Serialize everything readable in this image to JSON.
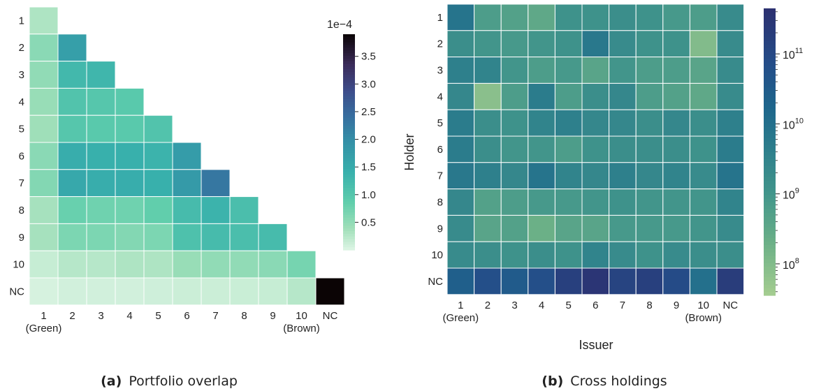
{
  "chart_data": [
    {
      "type": "heatmap",
      "panel": "a",
      "caption_label": "(a)",
      "caption_text": "Portfolio overlap",
      "row_labels": [
        "1",
        "2",
        "3",
        "4",
        "5",
        "6",
        "7",
        "8",
        "9",
        "10",
        "NC"
      ],
      "col_labels": [
        "1",
        "2",
        "3",
        "4",
        "5",
        "6",
        "7",
        "8",
        "9",
        "10",
        "NC"
      ],
      "x_extra_labels": [
        {
          "index": 0,
          "text": "(Green)"
        },
        {
          "index": 9,
          "text": "(Brown)"
        }
      ],
      "lower_triangular": true,
      "values": [
        [
          0.3
        ],
        [
          0.55,
          1.7
        ],
        [
          0.5,
          1.25,
          1.3
        ],
        [
          0.45,
          1.05,
          1.0,
          0.95
        ],
        [
          0.4,
          1.0,
          0.95,
          0.95,
          1.05
        ],
        [
          0.55,
          1.45,
          1.4,
          1.4,
          1.35,
          1.75
        ],
        [
          0.6,
          1.55,
          1.45,
          1.45,
          1.4,
          1.8,
          2.3
        ],
        [
          0.35,
          0.8,
          0.75,
          0.75,
          0.85,
          1.2,
          1.35,
          1.15
        ],
        [
          0.35,
          0.65,
          0.65,
          0.6,
          0.65,
          1.1,
          1.2,
          1.15,
          1.2
        ],
        [
          0.15,
          0.25,
          0.25,
          0.3,
          0.3,
          0.45,
          0.5,
          0.5,
          0.55,
          0.7
        ],
        [
          0.05,
          0.08,
          0.08,
          0.08,
          0.1,
          0.12,
          0.12,
          0.13,
          0.15,
          0.25,
          3.9
        ]
      ],
      "colorbar": {
        "scale": "linear",
        "min": 0.0,
        "max": 3.9,
        "ticks": [
          0.5,
          1.0,
          1.5,
          2.0,
          2.5,
          3.0,
          3.5
        ],
        "tick_labels": [
          "0.5",
          "1.0",
          "1.5",
          "2.0",
          "2.5",
          "3.0",
          "3.5"
        ],
        "exponent_label": "1e−4"
      },
      "colormap": "mako_r"
    },
    {
      "type": "heatmap",
      "panel": "b",
      "caption_label": "(b)",
      "caption_text": "Cross holdings",
      "xlabel": "Issuer",
      "ylabel": "Holder",
      "row_labels": [
        "1",
        "2",
        "3",
        "4",
        "5",
        "6",
        "7",
        "8",
        "9",
        "10",
        "NC"
      ],
      "col_labels": [
        "1",
        "2",
        "3",
        "4",
        "5",
        "6",
        "7",
        "8",
        "9",
        "10",
        "NC"
      ],
      "x_extra_labels": [
        {
          "index": 0,
          "text": "(Green)"
        },
        {
          "index": 9,
          "text": "(Brown)"
        }
      ],
      "values_log10": [
        [
          9.9,
          8.8,
          8.7,
          8.5,
          9.1,
          9.1,
          9.2,
          9.1,
          8.9,
          8.8,
          9.3
        ],
        [
          9.2,
          9.0,
          8.9,
          9.0,
          9.1,
          9.8,
          9.3,
          9.1,
          9.1,
          8.0,
          9.3
        ],
        [
          9.6,
          9.5,
          9.0,
          8.8,
          8.9,
          8.6,
          9.0,
          8.8,
          8.8,
          8.6,
          9.3
        ],
        [
          9.4,
          7.9,
          8.8,
          9.7,
          8.8,
          9.2,
          9.4,
          8.8,
          8.7,
          8.5,
          9.3
        ],
        [
          9.7,
          9.2,
          9.1,
          9.5,
          9.6,
          9.4,
          9.4,
          9.2,
          9.4,
          9.2,
          9.6
        ],
        [
          9.7,
          9.2,
          9.0,
          9.0,
          8.8,
          9.1,
          9.2,
          9.2,
          9.2,
          9.1,
          9.7
        ],
        [
          9.8,
          9.6,
          9.4,
          9.9,
          9.5,
          9.4,
          9.6,
          9.4,
          9.5,
          9.3,
          9.9
        ],
        [
          9.4,
          8.7,
          8.8,
          8.9,
          8.9,
          9.0,
          9.1,
          9.0,
          9.0,
          9.0,
          9.5
        ],
        [
          9.3,
          8.6,
          8.7,
          8.3,
          8.6,
          8.6,
          8.9,
          8.9,
          8.9,
          9.0,
          9.3
        ],
        [
          9.3,
          9.2,
          9.1,
          9.2,
          9.1,
          9.5,
          9.3,
          9.1,
          9.3,
          9.2,
          9.2
        ],
        [
          10.4,
          10.8,
          10.5,
          10.8,
          11.2,
          11.5,
          11.1,
          11.2,
          10.9,
          10.0,
          11.3
        ]
      ],
      "colorbar": {
        "scale": "log",
        "min_log10": 7.55,
        "max_log10": 11.65,
        "ticks_log10": [
          8,
          9,
          10,
          11
        ],
        "tick_labels": [
          {
            "base": "10",
            "exp": "8"
          },
          {
            "base": "10",
            "exp": "9"
          },
          {
            "base": "10",
            "exp": "10"
          },
          {
            "base": "10",
            "exp": "11"
          }
        ]
      },
      "colormap": "crest"
    }
  ]
}
